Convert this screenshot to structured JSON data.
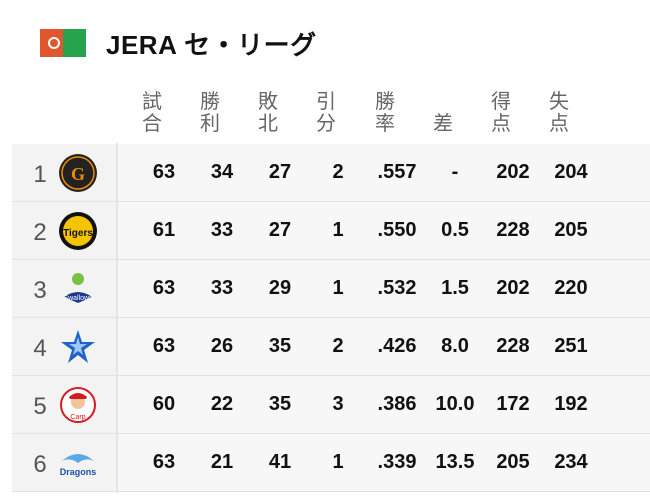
{
  "title": "JERA セ・リーグ",
  "headers": [
    "試\n合",
    "勝\n利",
    "敗\n北",
    "引\n分",
    "勝\n率",
    "差",
    "得\n点",
    "失\n点"
  ],
  "rows": [
    {
      "rank": "1",
      "team_icon": "giants-logo",
      "g": "63",
      "w": "34",
      "l": "27",
      "d": "2",
      "pct": ".557",
      "gb": "-",
      "rs": "202",
      "ra": "204"
    },
    {
      "rank": "2",
      "team_icon": "tigers-logo",
      "g": "61",
      "w": "33",
      "l": "27",
      "d": "1",
      "pct": ".550",
      "gb": "0.5",
      "rs": "228",
      "ra": "205"
    },
    {
      "rank": "3",
      "team_icon": "swallows-logo",
      "g": "63",
      "w": "33",
      "l": "29",
      "d": "1",
      "pct": ".532",
      "gb": "1.5",
      "rs": "202",
      "ra": "220"
    },
    {
      "rank": "4",
      "team_icon": "baystars-logo",
      "g": "63",
      "w": "26",
      "l": "35",
      "d": "2",
      "pct": ".426",
      "gb": "8.0",
      "rs": "228",
      "ra": "251"
    },
    {
      "rank": "5",
      "team_icon": "carp-logo",
      "g": "60",
      "w": "22",
      "l": "35",
      "d": "3",
      "pct": ".386",
      "gb": "10.0",
      "rs": "172",
      "ra": "192"
    },
    {
      "rank": "6",
      "team_icon": "dragons-logo",
      "g": "63",
      "w": "21",
      "l": "41",
      "d": "1",
      "pct": ".339",
      "gb": "13.5",
      "rs": "205",
      "ra": "234"
    }
  ],
  "colors": {
    "flag_green": "#27a34d",
    "flag_orange": "#e2562d"
  }
}
